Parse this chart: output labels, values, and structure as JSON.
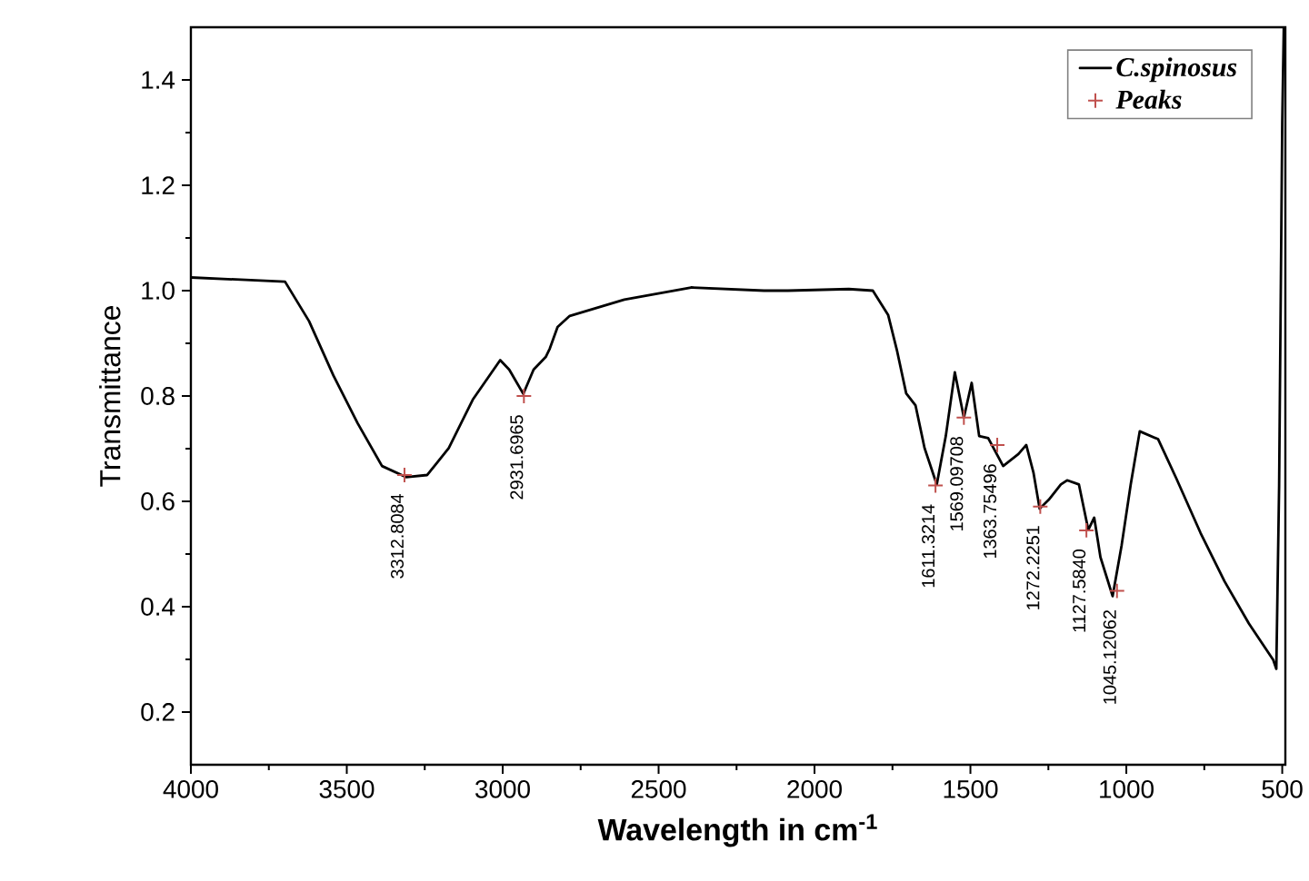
{
  "chart_data": {
    "type": "line",
    "xlabel": "Wavelength in cm$^{-1}$",
    "ylabel": "Transmittance",
    "xlim": [
      4000,
      490
    ],
    "ylim": [
      0.1,
      1.5
    ],
    "xticks": [
      4000,
      3500,
      3000,
      2500,
      2000,
      1500,
      1000,
      500
    ],
    "yticks": [
      0.2,
      0.4,
      0.6,
      0.8,
      {
        "value": 1.0,
        "label": "1.0"
      },
      1.2,
      1.4
    ],
    "grid": false,
    "legend": "top right",
    "line_style": "solid",
    "series": [
      {
        "name": "C.spinosus",
        "color": "#000000",
        "marker": "none",
        "x": [
          4000,
          3698,
          3621,
          3543,
          3465,
          3387,
          3310,
          3242,
          3173,
          3096,
          3008,
          2979,
          2934,
          2901,
          2862,
          2849,
          2824,
          2785,
          2610,
          2396,
          2162,
          2085,
          1890,
          1813,
          1764,
          1735,
          1706,
          1676,
          1647,
          1608,
          1579,
          1550,
          1521,
          1496,
          1472,
          1443,
          1395,
          1346,
          1321,
          1298,
          1278,
          1249,
          1210,
          1190,
          1152,
          1122,
          1103,
          1083,
          1044,
          1015,
          986,
          957,
          898,
          840,
          762,
          685,
          607,
          529,
          519,
          510,
          500,
          495
        ],
        "values": [
          1.025,
          1.017,
          0.942,
          0.839,
          0.748,
          0.667,
          0.646,
          0.65,
          0.701,
          0.793,
          0.868,
          0.85,
          0.804,
          0.85,
          0.874,
          0.89,
          0.931,
          0.952,
          0.983,
          1.006,
          1.0,
          1.0,
          1.003,
          1.0,
          0.954,
          0.885,
          0.805,
          0.782,
          0.701,
          0.632,
          0.724,
          0.845,
          0.759,
          0.825,
          0.724,
          0.72,
          0.667,
          0.69,
          0.707,
          0.655,
          0.586,
          0.603,
          0.632,
          0.64,
          0.632,
          0.546,
          0.569,
          0.494,
          0.42,
          0.517,
          0.632,
          0.733,
          0.718,
          0.644,
          0.54,
          0.448,
          0.368,
          0.299,
          0.282,
          0.63,
          1.32,
          1.5
        ]
      },
      {
        "name": "Peaks",
        "type": "scatter",
        "color": "#c0504d",
        "marker": "cross",
        "x": [
          3315,
          2932,
          1612,
          1521,
          1414,
          1276,
          1128,
          1030
        ],
        "values": [
          0.65,
          0.8,
          0.63,
          0.759,
          0.707,
          0.59,
          0.545,
          0.43
        ]
      }
    ],
    "annotations": [
      {
        "text": "3312.8084",
        "x": 3315,
        "y": 0.65
      },
      {
        "text": "2931.6965",
        "x": 2932,
        "y": 0.8
      },
      {
        "text": "1611.3214",
        "x": 1612,
        "y": 0.63
      },
      {
        "text": "1569.09708",
        "x": 1521,
        "y": 0.759
      },
      {
        "text": "1363.75496",
        "x": 1414,
        "y": 0.707
      },
      {
        "text": "1272.2251",
        "x": 1276,
        "y": 0.59
      },
      {
        "text": "1127.5840",
        "x": 1128,
        "y": 0.545
      },
      {
        "text": "1045.12062",
        "x": 1030,
        "y": 0.43
      }
    ]
  }
}
